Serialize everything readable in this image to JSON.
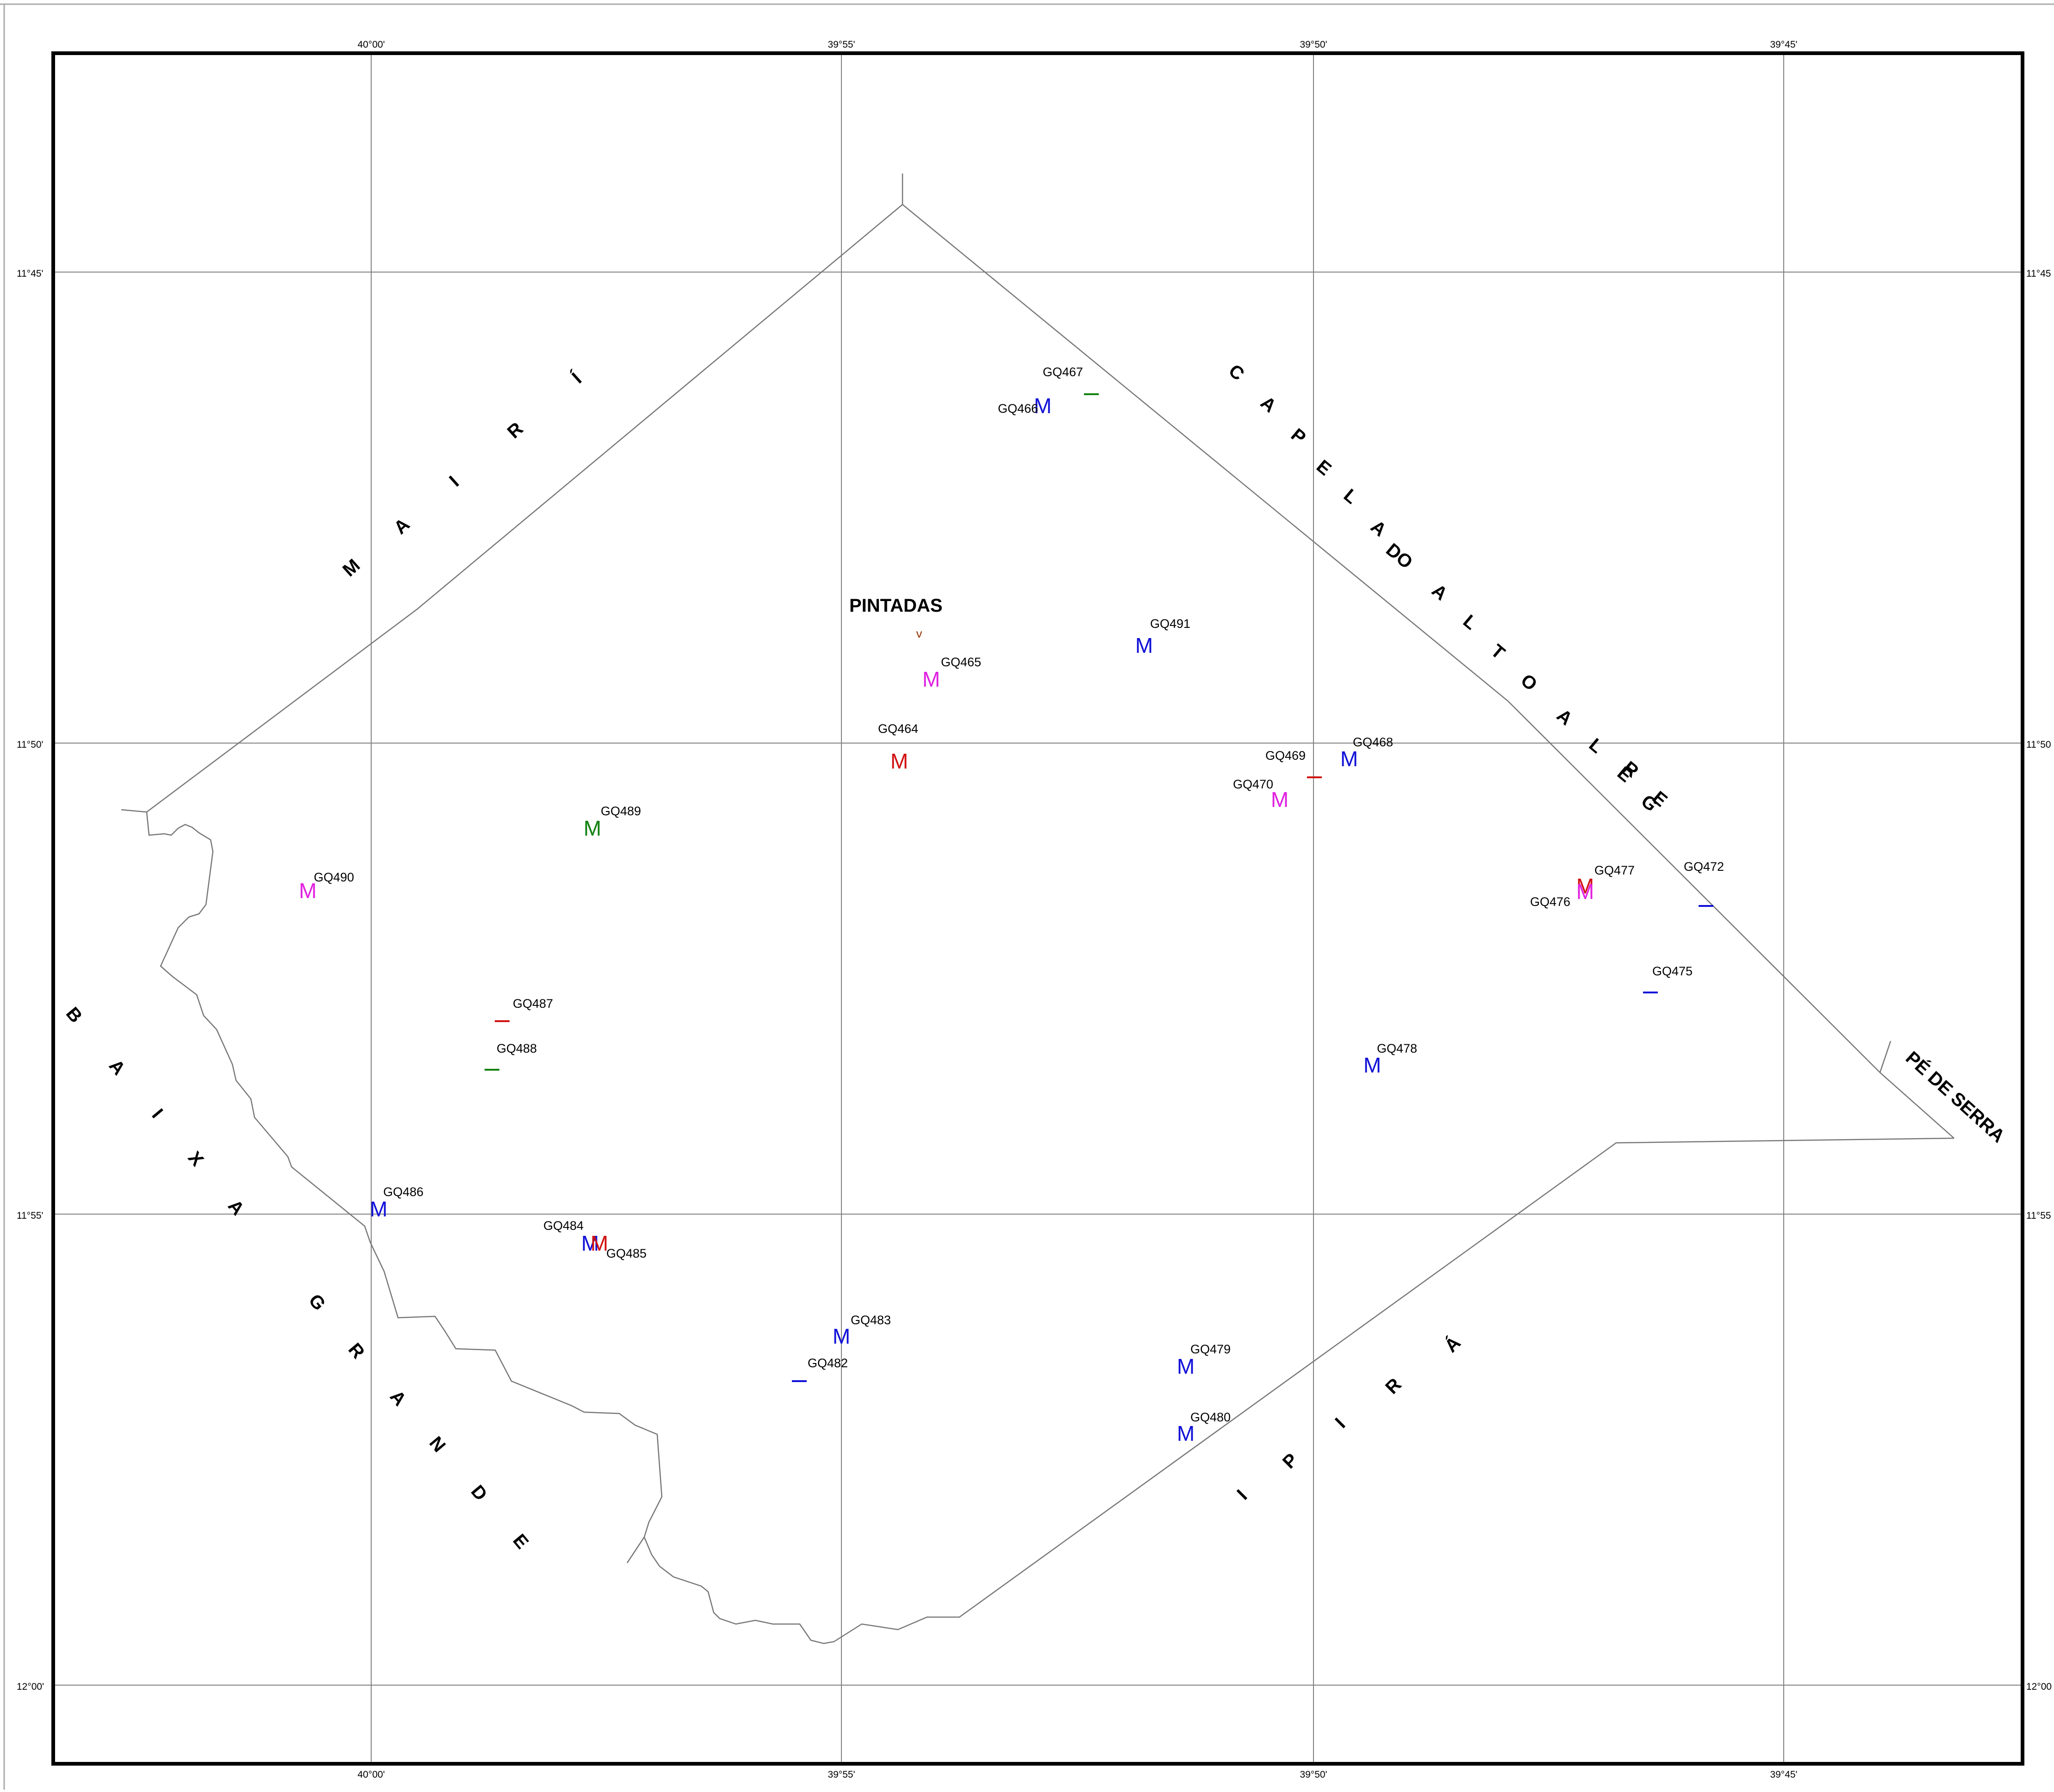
{
  "colors": {
    "blue": "#1010d8",
    "magenta": "#e020e0",
    "red": "#d01010",
    "green": "#108010",
    "frame": "#000000",
    "grid": "#808080",
    "boundary": "#777777"
  },
  "grid": {
    "lon_labels": [
      "40°00'",
      "39°55'",
      "39°50'",
      "39°45'"
    ],
    "lat_labels": [
      "11°45'",
      "11°50'",
      "11°55'",
      "12°00'"
    ],
    "lat_labels_right": [
      "11°45",
      "11°50",
      "11°55",
      "12°00"
    ]
  },
  "regions": {
    "mairi": [
      "M",
      "A",
      "I",
      "R",
      "Í"
    ],
    "capela": [
      "C",
      "A",
      "P",
      "E",
      "L",
      "A",
      "DO",
      "A",
      "L",
      "T",
      "O",
      "A",
      "L",
      "E",
      "G",
      "R",
      "E"
    ],
    "baixa_grande": [
      "B",
      "A",
      "I",
      "X",
      "A",
      "G",
      "R",
      "A",
      "N",
      "D",
      "E"
    ],
    "ipira": [
      "I",
      "P",
      "I",
      "R",
      "Á"
    ],
    "pe_de_serra": "PÉ DE SERRA"
  },
  "town": {
    "name": "PINTADAS",
    "symbol": "v"
  },
  "samples": [
    {
      "id": "GQ467",
      "symbol": "—",
      "color": "green"
    },
    {
      "id": "GQ466",
      "symbol": "M",
      "color": "blue"
    },
    {
      "id": "GQ491",
      "symbol": "M",
      "color": "blue"
    },
    {
      "id": "GQ465",
      "symbol": "M",
      "color": "magenta"
    },
    {
      "id": "GQ464",
      "symbol": "M",
      "color": "red"
    },
    {
      "id": "GQ468",
      "symbol": "M",
      "color": "blue"
    },
    {
      "id": "GQ469",
      "symbol": "—",
      "color": "red"
    },
    {
      "id": "GQ470",
      "symbol": "M",
      "color": "magenta"
    },
    {
      "id": "GQ489",
      "symbol": "M",
      "color": "green"
    },
    {
      "id": "GQ490",
      "symbol": "M",
      "color": "magenta"
    },
    {
      "id": "GQ477",
      "symbol": "M",
      "color": "red"
    },
    {
      "id": "GQ476",
      "symbol": "M",
      "color": "magenta"
    },
    {
      "id": "GQ472",
      "symbol": "—",
      "color": "blue"
    },
    {
      "id": "GQ475",
      "symbol": "—",
      "color": "blue"
    },
    {
      "id": "GQ487",
      "symbol": "—",
      "color": "red"
    },
    {
      "id": "GQ488",
      "symbol": "—",
      "color": "green"
    },
    {
      "id": "GQ478",
      "symbol": "M",
      "color": "blue"
    },
    {
      "id": "GQ486",
      "symbol": "M",
      "color": "blue"
    },
    {
      "id": "GQ484",
      "symbol": "M",
      "color": "blue"
    },
    {
      "id": "GQ485",
      "symbol": "M",
      "color": "red"
    },
    {
      "id": "GQ483",
      "symbol": "M",
      "color": "blue"
    },
    {
      "id": "GQ482",
      "symbol": "—",
      "color": "blue"
    },
    {
      "id": "GQ479",
      "symbol": "M",
      "color": "blue"
    },
    {
      "id": "GQ480",
      "symbol": "M",
      "color": "blue"
    }
  ]
}
